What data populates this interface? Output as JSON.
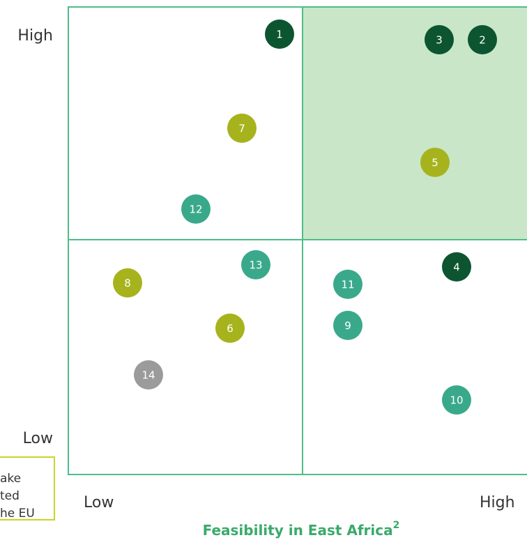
{
  "axis": {
    "y_high": "High",
    "y_low": "Low",
    "x_low": "Low",
    "x_high": "High",
    "x_title": "Feasibility in East Africa",
    "x_title_note": "2"
  },
  "legend_fragment": [
    "ake",
    "ted",
    "he EU"
  ],
  "nodes": [
    {
      "label": "1",
      "group": "dark"
    },
    {
      "label": "3",
      "group": "dark"
    },
    {
      "label": "2",
      "group": "dark"
    },
    {
      "label": "7",
      "group": "olive"
    },
    {
      "label": "5",
      "group": "olive"
    },
    {
      "label": "12",
      "group": "teal"
    },
    {
      "label": "13",
      "group": "teal"
    },
    {
      "label": "4",
      "group": "dark"
    },
    {
      "label": "8",
      "group": "olive"
    },
    {
      "label": "11",
      "group": "teal"
    },
    {
      "label": "9",
      "group": "teal"
    },
    {
      "label": "6",
      "group": "olive"
    },
    {
      "label": "14",
      "group": "gray"
    },
    {
      "label": "10",
      "group": "teal"
    }
  ]
}
